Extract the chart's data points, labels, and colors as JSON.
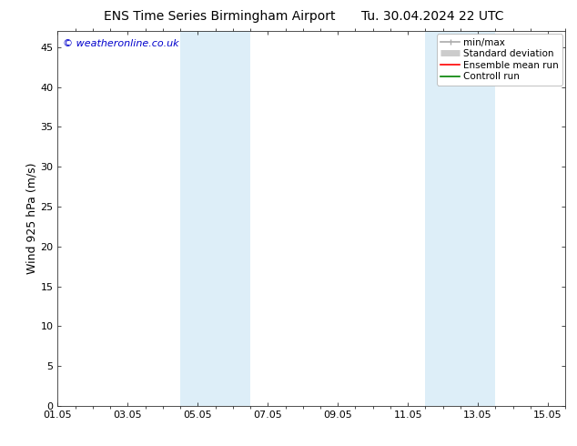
{
  "title": "ENS Time Series Birmingham Airport",
  "title2": "Tu. 30.04.2024 22 UTC",
  "ylabel": "Wind 925 hPa (m/s)",
  "watermark": "© weatheronline.co.uk",
  "xlim_start": 0,
  "xlim_end": 14.5,
  "ylim": [
    0,
    47
  ],
  "yticks": [
    0,
    5,
    10,
    15,
    20,
    25,
    30,
    35,
    40,
    45
  ],
  "xtick_labels": [
    "01.05",
    "03.05",
    "05.05",
    "07.05",
    "09.05",
    "11.05",
    "13.05",
    "15.05"
  ],
  "xtick_positions": [
    0,
    2,
    4,
    6,
    8,
    10,
    12,
    14
  ],
  "shaded_regions": [
    {
      "xmin": 3.5,
      "xmax": 5.5,
      "color": "#ddeef8"
    },
    {
      "xmin": 10.5,
      "xmax": 12.5,
      "color": "#ddeef8"
    }
  ],
  "legend_entries": [
    {
      "label": "min/max",
      "color": "#aaaaaa",
      "lw": 1.2
    },
    {
      "label": "Standard deviation",
      "color": "#cccccc",
      "lw": 5
    },
    {
      "label": "Ensemble mean run",
      "color": "#ff0000",
      "lw": 1.2
    },
    {
      "label": "Controll run",
      "color": "#008000",
      "lw": 1.2
    }
  ],
  "background_color": "#ffffff",
  "plot_bg_color": "#ffffff",
  "border_color": "#333333",
  "title_fontsize": 10,
  "watermark_color": "#0000cc",
  "watermark_fontsize": 8,
  "tick_fontsize": 8,
  "ylabel_fontsize": 9,
  "legend_fontsize": 7.5
}
